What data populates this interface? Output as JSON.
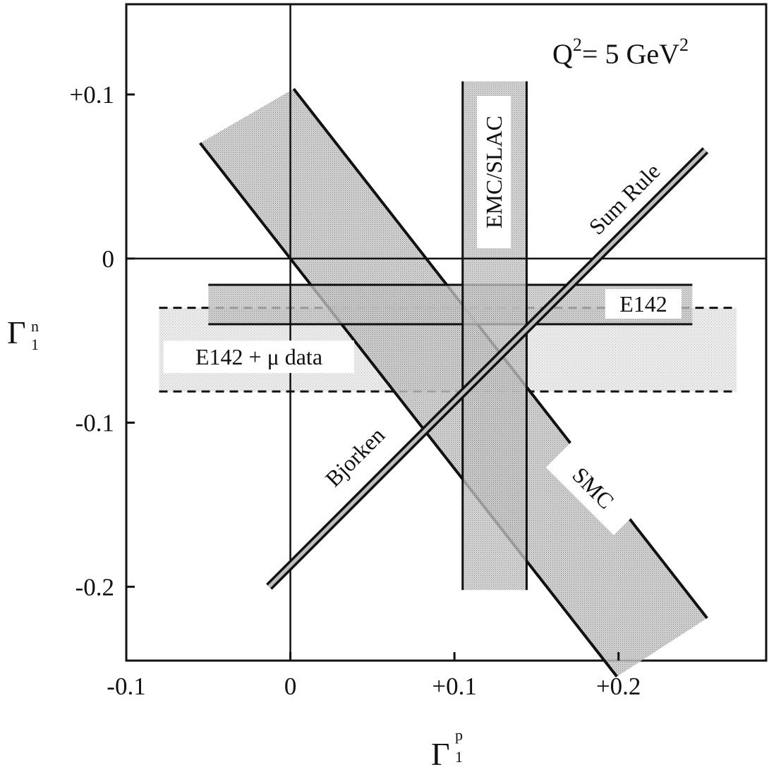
{
  "chart_data": {
    "type": "scatter",
    "annotation_q2": {
      "prefix": "Q",
      "sup": "2",
      "middle": "= 5 GeV",
      "sup2": "2"
    },
    "xlabel": {
      "main": "Γ",
      "sup": "p",
      "sub": "1"
    },
    "ylabel": {
      "main": "Γ",
      "sup": "n",
      "sub": "1"
    },
    "xlim": [
      -0.1,
      0.29
    ],
    "ylim": [
      -0.245,
      0.155
    ],
    "x_ticks": [
      {
        "value": -0.1,
        "label": "-0.1"
      },
      {
        "value": 0.0,
        "label": "0"
      },
      {
        "value": 0.1,
        "label": "+0.1"
      },
      {
        "value": 0.2,
        "label": "+0.2"
      }
    ],
    "y_ticks": [
      {
        "value": 0.1,
        "label": "+0.1"
      },
      {
        "value": 0.0,
        "label": "0"
      },
      {
        "value": -0.1,
        "label": "-0.1"
      },
      {
        "value": -0.2,
        "label": "-0.2"
      }
    ],
    "zero_lines": true,
    "bands": [
      {
        "name": "EMC/SLAC",
        "shape": "vertical",
        "x_range": [
          0.105,
          0.144
        ],
        "y_range": [
          -0.202,
          0.108
        ],
        "label": "EMC/SLAC",
        "fill": "#a6a6a6"
      },
      {
        "name": "E142",
        "shape": "horizontal",
        "y_range": [
          -0.04,
          -0.016
        ],
        "x_range": [
          -0.05,
          0.245
        ],
        "label": "E142",
        "fill": "#a9a9a9"
      },
      {
        "name": "E142 + μ data",
        "shape": "horizontal-dashed",
        "y_range": [
          -0.081,
          -0.03
        ],
        "x_range": [
          -0.08,
          0.272
        ],
        "label": "E142 + μ data",
        "fill": "#dcdcdc"
      },
      {
        "name": "SMC",
        "shape": "diagonal",
        "slope": -1.28,
        "y_intercepts": [
          0.106,
          0.0
        ],
        "x_range": [
          -0.055,
          0.254
        ],
        "label": "SMC",
        "fill": "#b8b8b8"
      }
    ],
    "lines": [
      {
        "name": "Bjorken Sum Rule",
        "slope": 1.0,
        "y_intercept": -0.187,
        "x_range": [
          -0.013,
          0.253
        ],
        "labels": [
          "Bjorken",
          "Sum Rule"
        ]
      }
    ]
  }
}
